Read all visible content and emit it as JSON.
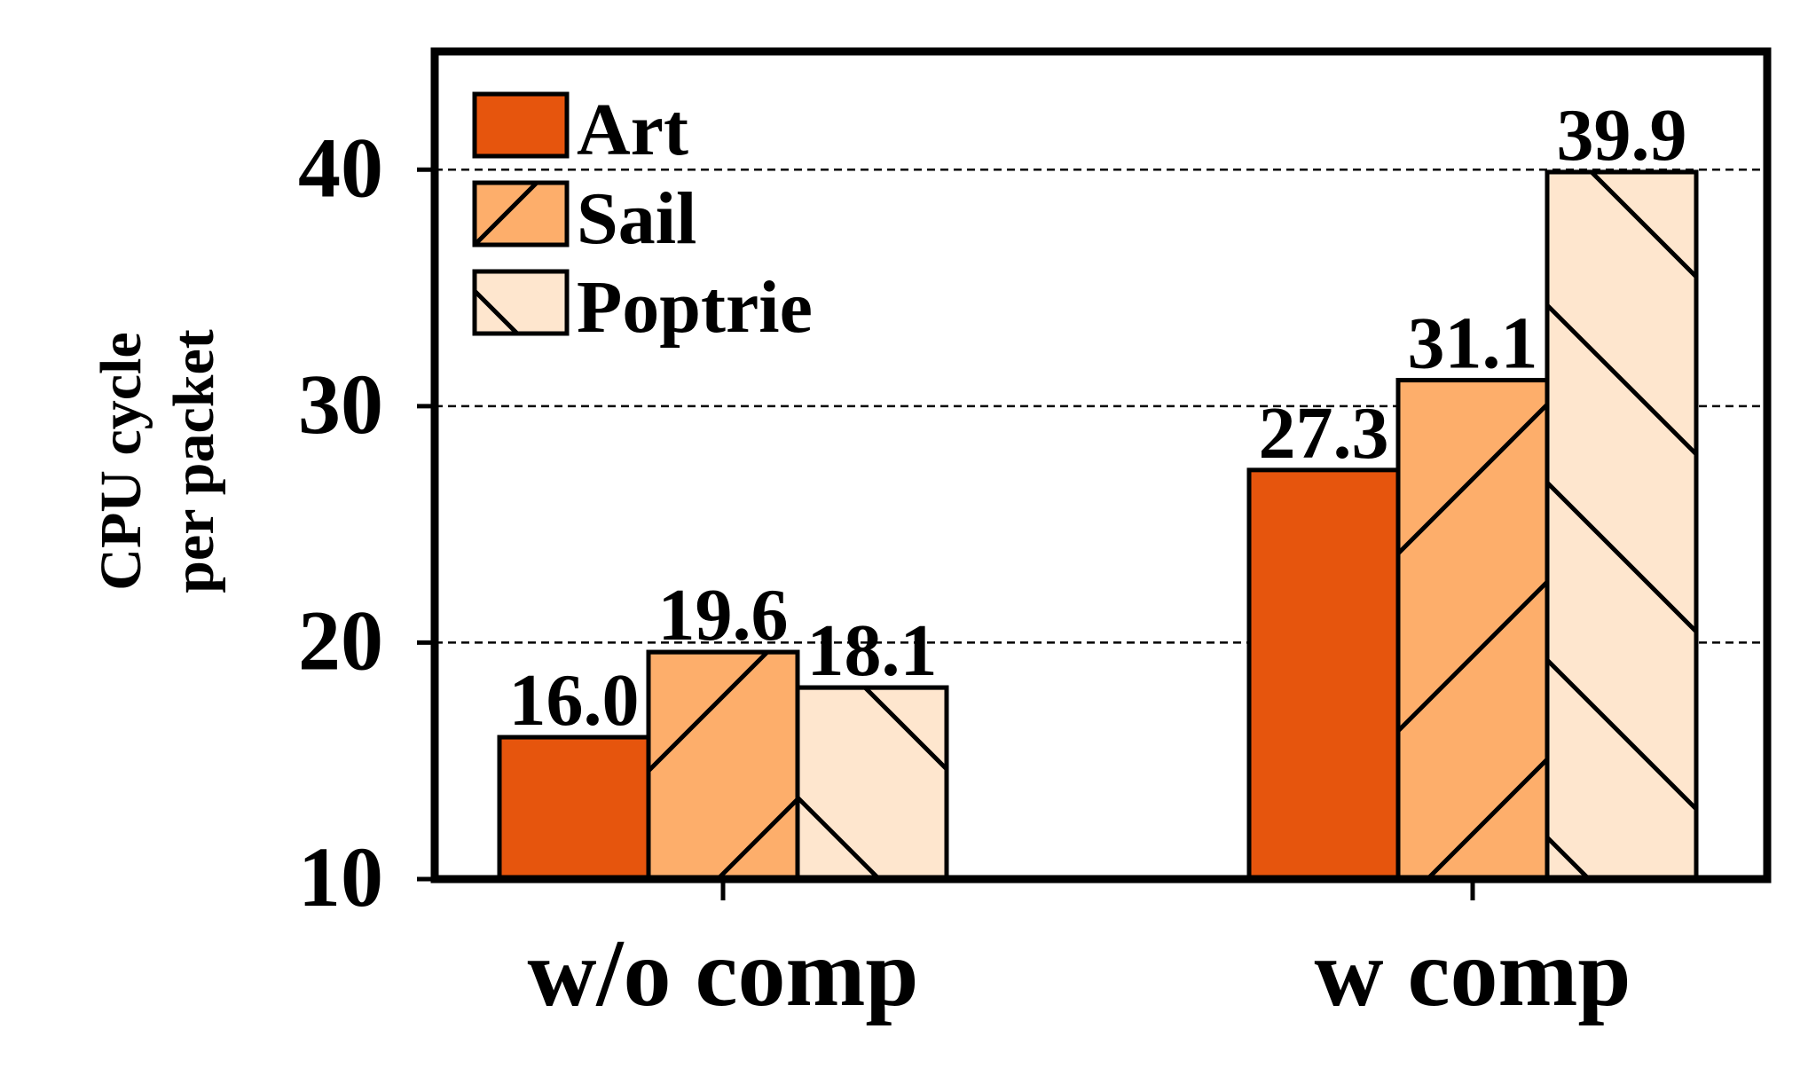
{
  "chart_data": {
    "type": "bar",
    "title": "",
    "ylabel_lines": [
      "CPU cycle",
      "per packet"
    ],
    "xlabel": "",
    "categories": [
      "w/o comp",
      "w comp"
    ],
    "series": [
      {
        "name": "Art",
        "values": [
          16.0,
          27.3
        ],
        "labels": [
          "16.0",
          "27.3"
        ],
        "color": "#e6550d",
        "hatch": "none"
      },
      {
        "name": "Sail",
        "values": [
          19.6,
          31.1
        ],
        "labels": [
          "19.6",
          "31.1"
        ],
        "color": "#fdae6b",
        "hatch": "forward"
      },
      {
        "name": "Poptrie",
        "values": [
          18.1,
          39.9
        ],
        "labels": [
          "18.1",
          "39.9"
        ],
        "color": "#fee6ce",
        "hatch": "back"
      }
    ],
    "ylim": [
      10,
      45
    ],
    "yticks": [
      10,
      20,
      30,
      40
    ],
    "ytick_labels": [
      "10",
      "20",
      "30",
      "40"
    ],
    "grid": {
      "axis": "y",
      "style": "dashed",
      "lines_at": [
        20,
        30,
        40
      ]
    },
    "legend_position": "top-left"
  }
}
